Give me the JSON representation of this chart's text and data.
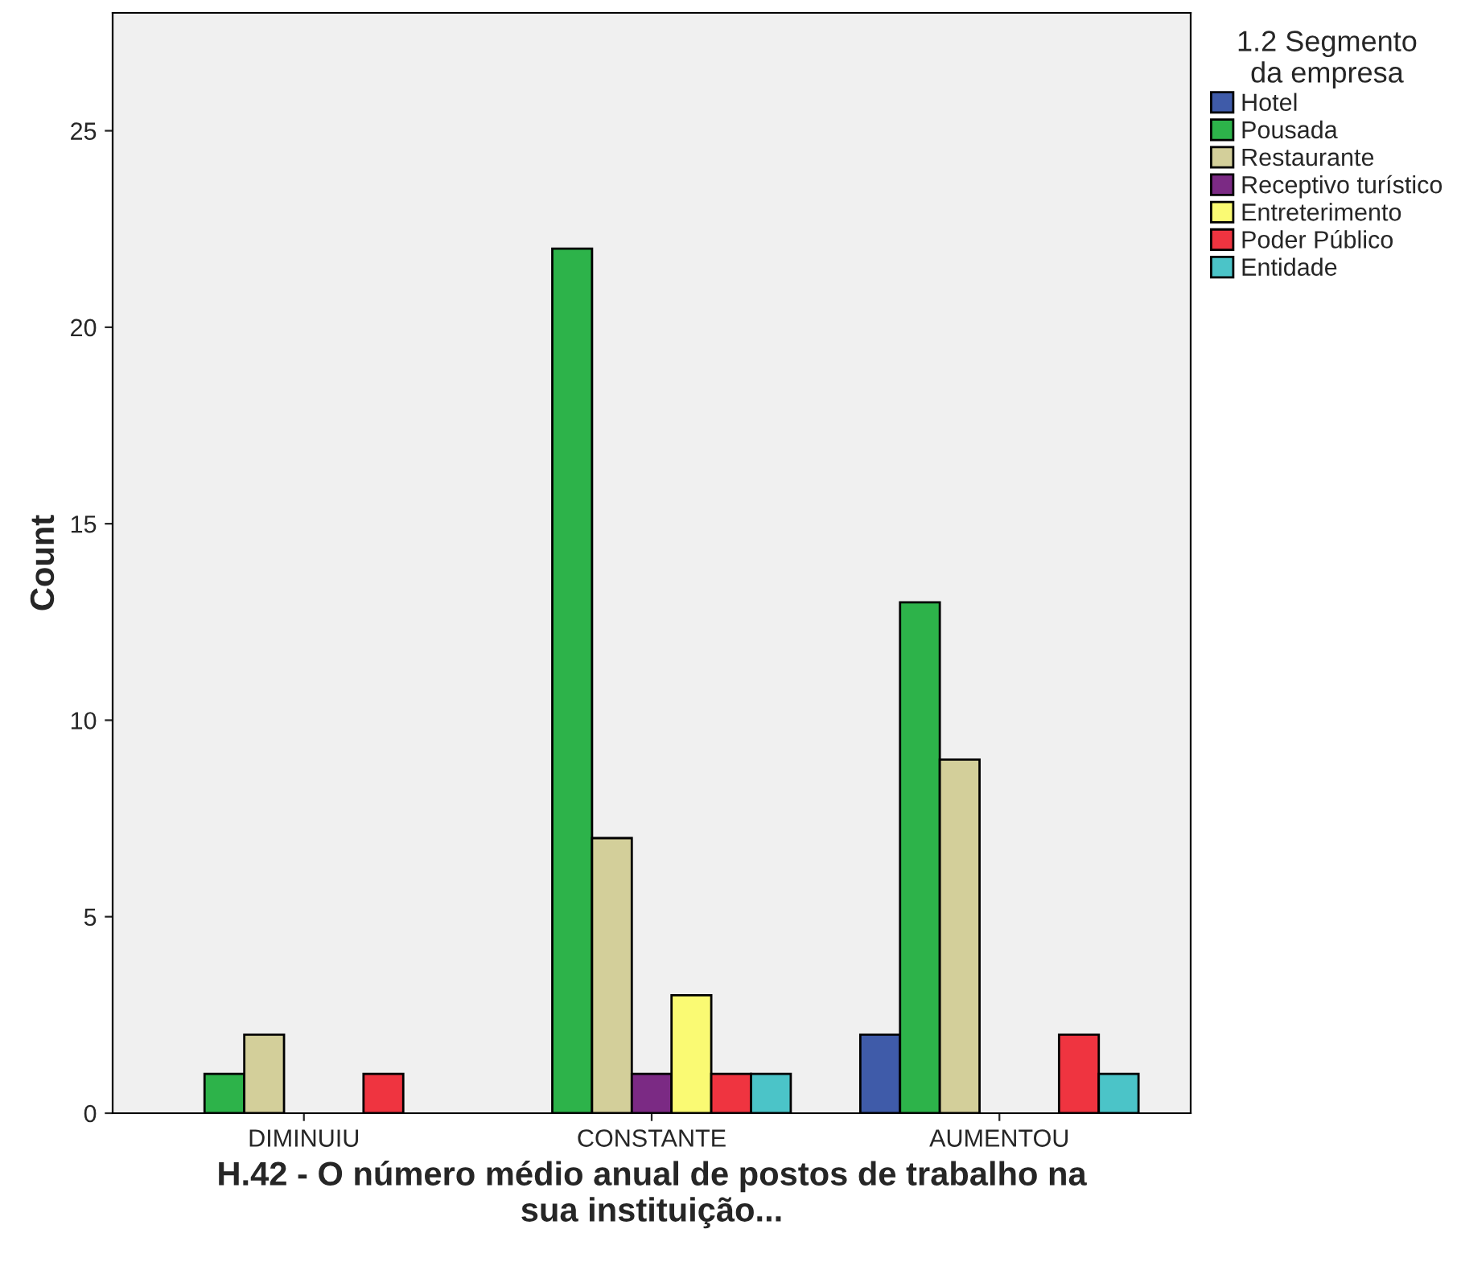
{
  "chart_data": {
    "type": "bar",
    "xlabel": "H.42 - O número médio anual de postos de trabalho na\nsua instituição...",
    "ylabel": "Count",
    "legend_title": "1.2 Segmento\nda empresa",
    "categories": [
      "DIMINUIU",
      "CONSTANTE",
      "AUMENTOU"
    ],
    "series": [
      {
        "name": "Hotel",
        "color": "#3f5ba9",
        "values": [
          null,
          null,
          2
        ]
      },
      {
        "name": "Pousada",
        "color": "#2db34a",
        "values": [
          1,
          22,
          13
        ]
      },
      {
        "name": "Restaurante",
        "color": "#d3cf9a",
        "values": [
          2,
          7,
          9
        ]
      },
      {
        "name": "Receptivo turístico",
        "color": "#7b2a84",
        "values": [
          null,
          1,
          null
        ]
      },
      {
        "name": "Entreterimento",
        "color": "#fafa73",
        "values": [
          null,
          3,
          null
        ]
      },
      {
        "name": "Poder Público",
        "color": "#ef3440",
        "values": [
          1,
          1,
          2
        ]
      },
      {
        "name": "Entidade",
        "color": "#4bc4c8",
        "values": [
          null,
          1,
          1
        ]
      }
    ],
    "ylim": [
      0,
      28
    ],
    "yticks": [
      0,
      5,
      10,
      15,
      20,
      25
    ],
    "grid": false,
    "legend": "right"
  }
}
